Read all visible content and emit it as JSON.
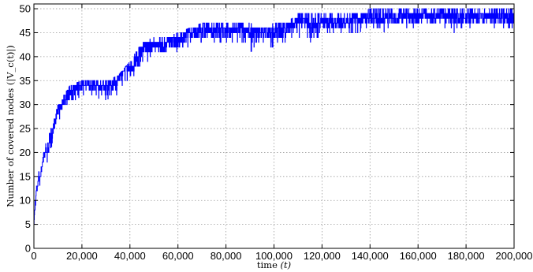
{
  "chart_data": {
    "type": "line",
    "xlabel": "time",
    "xlabel_var": "(t)",
    "ylabel": "Number of covered nodes (|V_c(t)|)",
    "xlim": [
      0,
      200000
    ],
    "ylim": [
      0,
      51
    ],
    "xticks": [
      0,
      20000,
      40000,
      60000,
      80000,
      100000,
      120000,
      140000,
      160000,
      180000,
      200000
    ],
    "xtick_labels": [
      "0",
      "20,000",
      "40,000",
      "60,000",
      "80,000",
      "100,000",
      "120,000",
      "140,000",
      "160,000",
      "180,000",
      "200,000"
    ],
    "yticks": [
      0,
      5,
      10,
      15,
      20,
      25,
      30,
      35,
      40,
      45,
      50
    ],
    "ytick_labels": [
      "0",
      "5",
      "10",
      "15",
      "20",
      "25",
      "30",
      "35",
      "40",
      "45",
      "50"
    ],
    "grid": true,
    "series": [
      {
        "color": "#0000ff",
        "points": [
          [
            0,
            5
          ],
          [
            500,
            9
          ],
          [
            1000,
            12
          ],
          [
            1500,
            13
          ],
          [
            2000,
            15
          ],
          [
            2500,
            14
          ],
          [
            3000,
            16
          ],
          [
            3500,
            17
          ],
          [
            4000,
            19
          ],
          [
            4500,
            20
          ],
          [
            5000,
            21
          ],
          [
            5500,
            19
          ],
          [
            6000,
            20
          ],
          [
            6500,
            22
          ],
          [
            7000,
            21
          ],
          [
            7500,
            23
          ],
          [
            8000,
            24
          ],
          [
            8500,
            26
          ],
          [
            9000,
            27
          ],
          [
            9500,
            28
          ],
          [
            10000,
            29
          ],
          [
            11000,
            29
          ],
          [
            12000,
            30
          ],
          [
            13000,
            31
          ],
          [
            14000,
            31
          ],
          [
            15000,
            32
          ],
          [
            16000,
            33
          ],
          [
            17000,
            33
          ],
          [
            18000,
            34
          ],
          [
            19000,
            34
          ],
          [
            20000,
            34
          ],
          [
            22000,
            34
          ],
          [
            24000,
            34
          ],
          [
            26000,
            34
          ],
          [
            28000,
            33
          ],
          [
            30000,
            34
          ],
          [
            32000,
            34
          ],
          [
            34000,
            33
          ],
          [
            35000,
            35
          ],
          [
            36000,
            37
          ],
          [
            38000,
            38
          ],
          [
            40000,
            38
          ],
          [
            42000,
            37
          ],
          [
            43000,
            38
          ],
          [
            44000,
            40
          ],
          [
            45000,
            41
          ],
          [
            46000,
            42
          ],
          [
            48000,
            42
          ],
          [
            50000,
            42
          ],
          [
            52000,
            42
          ],
          [
            54000,
            42
          ],
          [
            56000,
            43
          ],
          [
            58000,
            43
          ],
          [
            60000,
            43
          ],
          [
            62000,
            44
          ],
          [
            64000,
            45
          ],
          [
            66000,
            45
          ],
          [
            68000,
            45
          ],
          [
            70000,
            45
          ],
          [
            72000,
            45
          ],
          [
            74000,
            45
          ],
          [
            76000,
            46
          ],
          [
            78000,
            46
          ],
          [
            80000,
            46
          ],
          [
            82000,
            45
          ],
          [
            84000,
            46
          ],
          [
            86000,
            46
          ],
          [
            88000,
            46
          ],
          [
            90000,
            45
          ],
          [
            92000,
            45
          ],
          [
            94000,
            45
          ],
          [
            96000,
            45
          ],
          [
            98000,
            45
          ],
          [
            100000,
            45
          ],
          [
            102000,
            45
          ],
          [
            104000,
            45
          ],
          [
            106000,
            46
          ],
          [
            108000,
            46
          ],
          [
            110000,
            48
          ],
          [
            112000,
            47
          ],
          [
            114000,
            47
          ],
          [
            116000,
            46
          ],
          [
            118000,
            46
          ],
          [
            120000,
            47
          ],
          [
            122000,
            46
          ],
          [
            124000,
            47
          ],
          [
            126000,
            47
          ],
          [
            128000,
            47
          ],
          [
            130000,
            47
          ],
          [
            132000,
            48
          ],
          [
            134000,
            48
          ],
          [
            136000,
            48
          ],
          [
            138000,
            48
          ],
          [
            140000,
            48
          ],
          [
            142000,
            48
          ],
          [
            144000,
            47
          ],
          [
            146000,
            48
          ],
          [
            148000,
            49
          ],
          [
            150000,
            48
          ],
          [
            152000,
            48
          ],
          [
            154000,
            48
          ],
          [
            156000,
            48
          ],
          [
            158000,
            48
          ],
          [
            160000,
            48
          ],
          [
            162000,
            48
          ],
          [
            164000,
            48
          ],
          [
            166000,
            48
          ],
          [
            168000,
            48
          ],
          [
            170000,
            48
          ],
          [
            172000,
            48
          ],
          [
            174000,
            48
          ],
          [
            176000,
            48
          ],
          [
            178000,
            48
          ],
          [
            180000,
            48
          ],
          [
            182000,
            48
          ],
          [
            184000,
            48
          ],
          [
            186000,
            48
          ],
          [
            188000,
            48
          ],
          [
            190000,
            48
          ],
          [
            192000,
            48
          ],
          [
            194000,
            48
          ],
          [
            196000,
            48
          ],
          [
            198000,
            48
          ],
          [
            200000,
            48
          ]
        ],
        "fluctuation_envelope": [
          [
            5000,
            17,
            22
          ],
          [
            10000,
            26,
            30
          ],
          [
            15000,
            30,
            34
          ],
          [
            20000,
            32,
            35
          ],
          [
            30000,
            31,
            35
          ],
          [
            35000,
            32,
            36
          ],
          [
            40000,
            35,
            39
          ],
          [
            45000,
            38,
            43
          ],
          [
            50000,
            40,
            44
          ],
          [
            55000,
            41,
            44
          ],
          [
            60000,
            41,
            45
          ],
          [
            65000,
            42,
            46
          ],
          [
            70000,
            43,
            47
          ],
          [
            75000,
            43,
            47
          ],
          [
            80000,
            43,
            47
          ],
          [
            85000,
            42,
            47
          ],
          [
            90000,
            41,
            47
          ],
          [
            95000,
            42,
            46
          ],
          [
            100000,
            42,
            47
          ],
          [
            105000,
            43,
            47
          ],
          [
            110000,
            44,
            49
          ],
          [
            115000,
            43,
            49
          ],
          [
            120000,
            44,
            49
          ],
          [
            125000,
            44,
            49
          ],
          [
            130000,
            44,
            49
          ],
          [
            135000,
            45,
            49
          ],
          [
            140000,
            46,
            50
          ],
          [
            145000,
            45,
            50
          ],
          [
            150000,
            46,
            50
          ],
          [
            155000,
            46,
            50
          ],
          [
            160000,
            46,
            50
          ],
          [
            165000,
            46,
            50
          ],
          [
            170000,
            45,
            50
          ],
          [
            175000,
            45,
            50
          ],
          [
            180000,
            46,
            50
          ],
          [
            185000,
            46,
            50
          ],
          [
            190000,
            46,
            50
          ],
          [
            195000,
            46,
            50
          ],
          [
            200000,
            46,
            50
          ]
        ]
      }
    ]
  }
}
